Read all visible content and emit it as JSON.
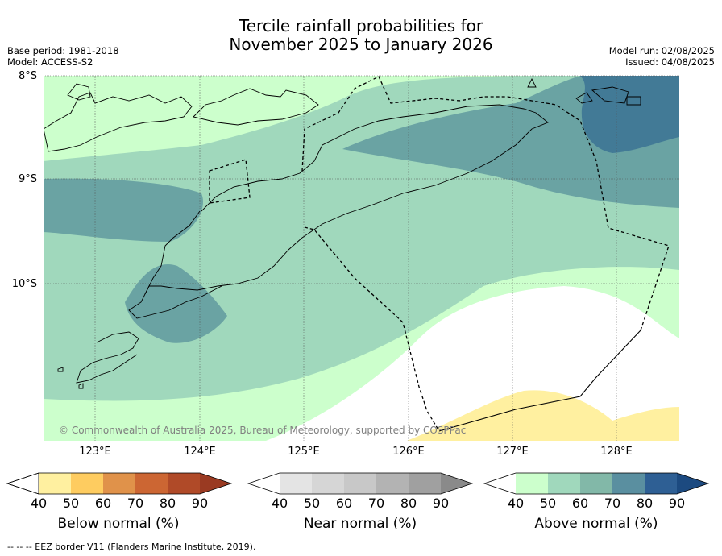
{
  "title_line1": "Tercile rainfall probabilities for",
  "title_line2": "November 2025 to January 2026",
  "base_period": "Base period: 1981-2018",
  "model": "Model: ACCESS-S2",
  "model_run": "Model run: 02/08/2025",
  "issued": "Issued: 04/08/2025",
  "copyright": "© Commonwealth of Australia 2025, Bureau of Meteorology, supported by COSPPac",
  "lat_labels": [
    "8°S",
    "9°S",
    "10°S"
  ],
  "lon_labels": [
    "123°E",
    "124°E",
    "125°E",
    "126°E",
    "127°E",
    "128°E"
  ],
  "colorbars": [
    {
      "title": "Below normal (%)",
      "ticks": [
        "40",
        "50",
        "60",
        "70",
        "80",
        "90"
      ],
      "colors": [
        "#ffffff",
        "#fff0a0",
        "#fecc60",
        "#e0924a",
        "#cc6633",
        "#b04a28",
        "#9a3a22"
      ]
    },
    {
      "title": "Near normal (%)",
      "ticks": [
        "40",
        "50",
        "60",
        "70",
        "80",
        "90"
      ],
      "colors": [
        "#ffffff",
        "#e4e4e4",
        "#d6d6d6",
        "#c8c8c8",
        "#b3b3b3",
        "#a0a0a0",
        "#8a8a8a"
      ]
    },
    {
      "title": "Above normal (%)",
      "ticks": [
        "40",
        "50",
        "60",
        "70",
        "80",
        "90"
      ],
      "colors": [
        "#ffffff",
        "#ccffcc",
        "#a0d8bc",
        "#82b8a8",
        "#5a8fa0",
        "#2e5f94",
        "#1c4a80"
      ]
    }
  ],
  "footer": "--  --  -- EEZ border V11 (Flanders Marine Institute, 2019)."
}
